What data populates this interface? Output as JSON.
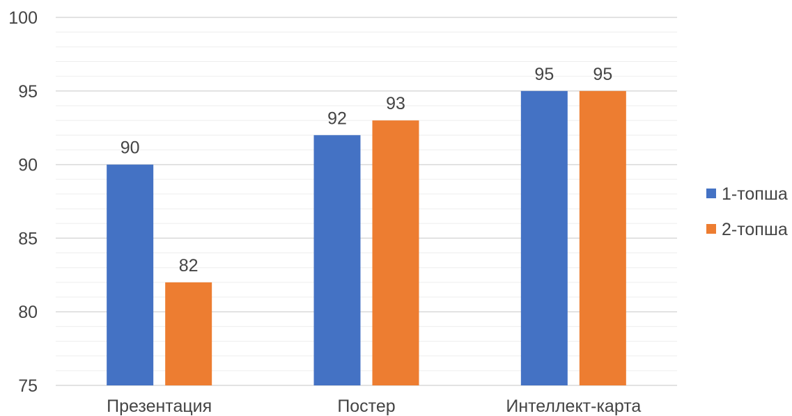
{
  "chart_data": {
    "type": "bar",
    "categories": [
      "Презентация",
      "Постер",
      "Интеллект-карта"
    ],
    "series": [
      {
        "name": "1-топша",
        "values": [
          90,
          92,
          95
        ],
        "color": "#4472C4"
      },
      {
        "name": "2-топша",
        "values": [
          82,
          93,
          95
        ],
        "color": "#ED7D31"
      }
    ],
    "ylim": [
      75,
      100
    ],
    "yticks": [
      75,
      80,
      85,
      90,
      95,
      100
    ],
    "minor_grid_step": 1,
    "grid": true,
    "data_labels": true,
    "legend_position": "right",
    "title": "",
    "xlabel": "",
    "ylabel": ""
  }
}
